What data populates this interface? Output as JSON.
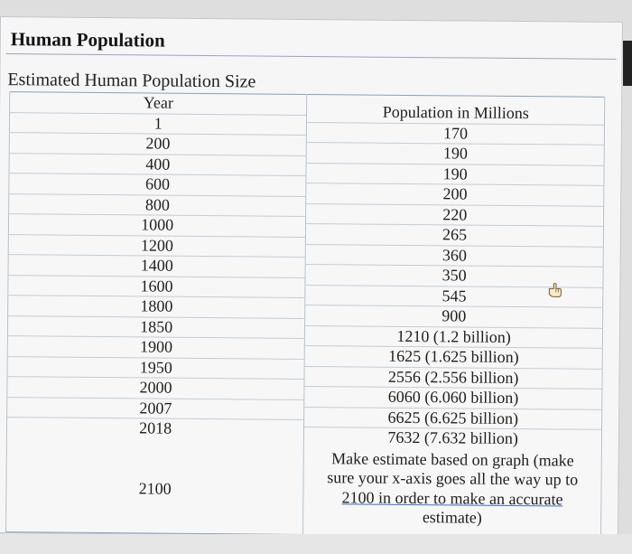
{
  "title": "Human Population",
  "table": {
    "caption": "Estimated Human Population Size",
    "header_year": "Year",
    "header_population": "Population in Millions",
    "years": [
      "1",
      "200",
      "400",
      "600",
      "800",
      "1000",
      "1200",
      "1400",
      "1600",
      "1800",
      "1850",
      "1900",
      "1950",
      "2000",
      "2007",
      "2018"
    ],
    "populations": [
      "170",
      "190",
      "190",
      "200",
      "220",
      "265",
      "360",
      "350",
      "545",
      "900",
      "1210 (1.2 billion)",
      "1625 (1.625 billion)",
      "2556 (2.556 billion)",
      "6060 (6.060 billion)",
      "6625 (6.625 billion)",
      "7632 (7.632 billion)"
    ],
    "last_year": "2100",
    "last_note_lines": [
      "Make estimate based on graph (make",
      "sure your x-axis goes all the way up to",
      "2100 in order to make an accurate",
      "estimate)"
    ]
  }
}
